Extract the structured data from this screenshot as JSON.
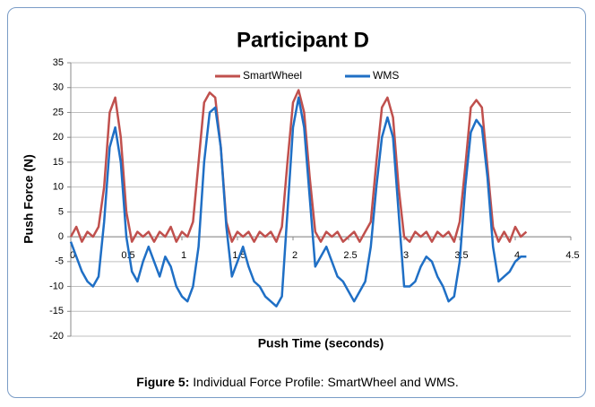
{
  "chart_data": {
    "type": "line",
    "title": "Participant D",
    "xlabel": "Push Time (seconds)",
    "ylabel": "Push Force (N)",
    "x": [
      0,
      0.05,
      0.1,
      0.15,
      0.2,
      0.25,
      0.3,
      0.35,
      0.4,
      0.45,
      0.5,
      0.55,
      0.6,
      0.65,
      0.7,
      0.75,
      0.8,
      0.85,
      0.9,
      0.95,
      1,
      1.05,
      1.1,
      1.15,
      1.2,
      1.25,
      1.3,
      1.35,
      1.4,
      1.45,
      1.5,
      1.55,
      1.6,
      1.65,
      1.7,
      1.75,
      1.8,
      1.85,
      1.9,
      1.95,
      2,
      2.05,
      2.1,
      2.15,
      2.2,
      2.25,
      2.3,
      2.35,
      2.4,
      2.45,
      2.5,
      2.55,
      2.6,
      2.65,
      2.7,
      2.75,
      2.8,
      2.85,
      2.9,
      2.95,
      3,
      3.05,
      3.1,
      3.15,
      3.2,
      3.25,
      3.3,
      3.35,
      3.4,
      3.45,
      3.5,
      3.55,
      3.6,
      3.65,
      3.7,
      3.75,
      3.8,
      3.85,
      3.9,
      3.95,
      4,
      4.05,
      4.1
    ],
    "series": [
      {
        "name": "SmartWheel",
        "color": "#c0504d",
        "values": [
          0,
          2,
          -1,
          1,
          0,
          2,
          10,
          25,
          28,
          20,
          5,
          -1,
          1,
          0,
          1,
          -1,
          1,
          0,
          2,
          -1,
          1,
          0,
          3,
          15,
          27,
          29,
          28,
          18,
          3,
          -1,
          1,
          0,
          1,
          -1,
          1,
          0,
          1,
          -1,
          2,
          15,
          27,
          29.5,
          25,
          12,
          1,
          -1,
          1,
          0,
          1,
          -1,
          0,
          1,
          -1,
          1,
          3,
          15,
          26,
          28,
          24,
          10,
          0,
          -1,
          1,
          0,
          1,
          -1,
          1,
          0,
          1,
          -1,
          3,
          14,
          26,
          27.5,
          26,
          14,
          2,
          -1,
          1,
          -1,
          2,
          0,
          1
        ]
      },
      {
        "name": "WMS",
        "color": "#1f6fc5",
        "values": [
          -1,
          -4,
          -7,
          -9,
          -10,
          -8,
          3,
          18,
          22,
          15,
          0,
          -7,
          -9,
          -5,
          -2,
          -5,
          -8,
          -4,
          -6,
          -10,
          -12,
          -13,
          -10,
          -2,
          15,
          25,
          26,
          18,
          2,
          -8,
          -5,
          -2,
          -6,
          -9,
          -10,
          -12,
          -13,
          -14,
          -12,
          5,
          22,
          28,
          22,
          8,
          -6,
          -4,
          -2,
          -5,
          -8,
          -9,
          -11,
          -13,
          -11,
          -9,
          -2,
          10,
          20,
          24,
          20,
          5,
          -10,
          -10,
          -9,
          -6,
          -4,
          -5,
          -8,
          -10,
          -13,
          -12,
          -5,
          10,
          21,
          23.5,
          22,
          12,
          -2,
          -9,
          -8,
          -7,
          -5,
          -4,
          -4
        ]
      }
    ],
    "xlim": [
      0,
      4.5
    ],
    "xticks": [
      0,
      0.5,
      1,
      1.5,
      2,
      2.5,
      3,
      3.5,
      4,
      4.5
    ],
    "ylim": [
      -20,
      35
    ],
    "yticks": [
      -20,
      -15,
      -10,
      -5,
      0,
      5,
      10,
      15,
      20,
      25,
      30,
      35
    ],
    "grid": true,
    "legend": "top"
  },
  "caption": {
    "label": "Figure 5:",
    "text": "Individual Force Profile: SmartWheel and WMS."
  }
}
